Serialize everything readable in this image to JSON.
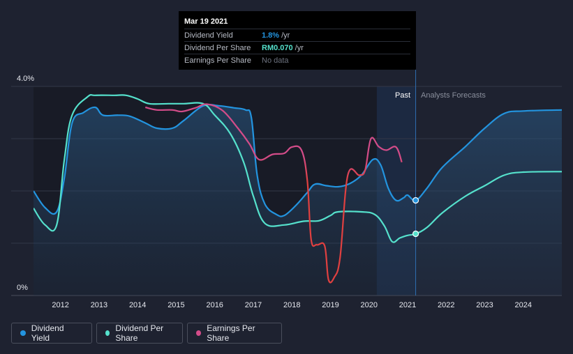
{
  "chart_data": {
    "type": "line",
    "x_range": [
      2011.3,
      2025.0
    ],
    "ylim": [
      0,
      4.0
    ],
    "y_tick_labels": [
      "4.0%",
      "0%"
    ],
    "x_tick_labels": [
      "2012",
      "2013",
      "2014",
      "2015",
      "2016",
      "2017",
      "2018",
      "2019",
      "2020",
      "2021",
      "2022",
      "2023",
      "2024"
    ],
    "x_ticks": [
      2012,
      2013,
      2014,
      2015,
      2016,
      2017,
      2018,
      2019,
      2020,
      2021,
      2022,
      2023,
      2024
    ],
    "past_start": 2020.2,
    "forecast_start": 2021.21,
    "past_label": "Past",
    "forecast_label": "Analysts Forecasts",
    "series": [
      {
        "name": "Dividend Yield",
        "color": "#2394df",
        "area": true,
        "points": [
          [
            2011.3,
            2.0
          ],
          [
            2011.6,
            1.68
          ],
          [
            2011.9,
            1.6
          ],
          [
            2012.1,
            2.25
          ],
          [
            2012.3,
            3.3
          ],
          [
            2012.6,
            3.5
          ],
          [
            2012.9,
            3.6
          ],
          [
            2013.1,
            3.45
          ],
          [
            2013.5,
            3.45
          ],
          [
            2013.8,
            3.43
          ],
          [
            2014.2,
            3.3
          ],
          [
            2014.5,
            3.2
          ],
          [
            2014.9,
            3.2
          ],
          [
            2015.2,
            3.35
          ],
          [
            2015.7,
            3.63
          ],
          [
            2016.1,
            3.63
          ],
          [
            2016.5,
            3.59
          ],
          [
            2016.8,
            3.55
          ],
          [
            2016.95,
            3.4
          ],
          [
            2017.1,
            2.3
          ],
          [
            2017.3,
            1.75
          ],
          [
            2017.6,
            1.55
          ],
          [
            2017.8,
            1.53
          ],
          [
            2018.1,
            1.72
          ],
          [
            2018.4,
            1.97
          ],
          [
            2018.6,
            2.13
          ],
          [
            2018.9,
            2.1
          ],
          [
            2019.2,
            2.08
          ],
          [
            2019.5,
            2.14
          ],
          [
            2019.8,
            2.3
          ],
          [
            2020.1,
            2.6
          ],
          [
            2020.3,
            2.5
          ],
          [
            2020.5,
            2.05
          ],
          [
            2020.7,
            1.82
          ],
          [
            2020.9,
            1.87
          ],
          [
            2021.0,
            1.92
          ],
          [
            2021.21,
            1.82
          ],
          [
            2021.5,
            2.05
          ],
          [
            2021.9,
            2.45
          ],
          [
            2022.5,
            2.85
          ],
          [
            2023.0,
            3.2
          ],
          [
            2023.5,
            3.48
          ],
          [
            2024.0,
            3.53
          ],
          [
            2025.0,
            3.55
          ]
        ]
      },
      {
        "name": "Dividend Per Share",
        "color": "#55e1cc",
        "area": false,
        "points": [
          [
            2011.3,
            1.67
          ],
          [
            2011.6,
            1.35
          ],
          [
            2011.9,
            1.35
          ],
          [
            2012.1,
            2.6
          ],
          [
            2012.3,
            3.45
          ],
          [
            2012.7,
            3.8
          ],
          [
            2012.9,
            3.83
          ],
          [
            2013.4,
            3.83
          ],
          [
            2013.7,
            3.83
          ],
          [
            2014.0,
            3.76
          ],
          [
            2014.3,
            3.67
          ],
          [
            2014.8,
            3.67
          ],
          [
            2015.2,
            3.67
          ],
          [
            2015.7,
            3.67
          ],
          [
            2016.0,
            3.45
          ],
          [
            2016.4,
            3.1
          ],
          [
            2016.75,
            2.55
          ],
          [
            2017.0,
            1.9
          ],
          [
            2017.3,
            1.38
          ],
          [
            2017.8,
            1.35
          ],
          [
            2018.3,
            1.42
          ],
          [
            2018.7,
            1.43
          ],
          [
            2019.0,
            1.53
          ],
          [
            2019.2,
            1.6
          ],
          [
            2019.8,
            1.6
          ],
          [
            2020.15,
            1.55
          ],
          [
            2020.4,
            1.33
          ],
          [
            2020.6,
            1.03
          ],
          [
            2020.8,
            1.1
          ],
          [
            2021.0,
            1.15
          ],
          [
            2021.21,
            1.18
          ],
          [
            2021.5,
            1.3
          ],
          [
            2021.9,
            1.58
          ],
          [
            2022.5,
            1.9
          ],
          [
            2023.0,
            2.1
          ],
          [
            2023.5,
            2.3
          ],
          [
            2024.0,
            2.36
          ],
          [
            2025.0,
            2.37
          ]
        ]
      },
      {
        "name": "Earnings Per Share",
        "color": "#d34c89",
        "color_low": "#e04040",
        "area": false,
        "points": [
          [
            2014.2,
            3.6
          ],
          [
            2014.5,
            3.55
          ],
          [
            2014.9,
            3.55
          ],
          [
            2015.15,
            3.52
          ],
          [
            2015.5,
            3.59
          ],
          [
            2015.8,
            3.66
          ],
          [
            2016.2,
            3.54
          ],
          [
            2016.6,
            3.2
          ],
          [
            2016.9,
            2.9
          ],
          [
            2017.15,
            2.6
          ],
          [
            2017.5,
            2.7
          ],
          [
            2017.8,
            2.72
          ],
          [
            2018.0,
            2.84
          ],
          [
            2018.25,
            2.78
          ],
          [
            2018.4,
            2.2
          ],
          [
            2018.5,
            1.07
          ],
          [
            2018.65,
            0.97
          ],
          [
            2018.85,
            0.95
          ],
          [
            2018.95,
            0.3
          ],
          [
            2019.1,
            0.35
          ],
          [
            2019.25,
            0.73
          ],
          [
            2019.45,
            2.3
          ],
          [
            2019.75,
            2.3
          ],
          [
            2019.9,
            2.4
          ],
          [
            2020.05,
            3.0
          ],
          [
            2020.25,
            2.85
          ],
          [
            2020.45,
            2.78
          ],
          [
            2020.7,
            2.84
          ],
          [
            2020.85,
            2.55
          ]
        ]
      }
    ],
    "markers": [
      {
        "series": "Dividend Yield",
        "x": 2021.21,
        "y": 1.82
      },
      {
        "series": "Dividend Per Share",
        "x": 2021.21,
        "y": 1.18
      }
    ]
  },
  "tooltip": {
    "date": "Mar 19 2021",
    "rows": [
      {
        "label": "Dividend Yield",
        "value": "1.8%",
        "unit": "/yr",
        "color": "#2394df"
      },
      {
        "label": "Dividend Per Share",
        "value": "RM0.070",
        "unit": "/yr",
        "color": "#55e1cc"
      },
      {
        "label": "Earnings Per Share",
        "value": "No data",
        "unit": "",
        "color": "#6e7380"
      }
    ]
  },
  "legend": [
    {
      "label": "Dividend Yield",
      "color": "#2394df"
    },
    {
      "label": "Dividend Per Share",
      "color": "#55e1cc"
    },
    {
      "label": "Earnings Per Share",
      "color": "#d34c89"
    }
  ]
}
